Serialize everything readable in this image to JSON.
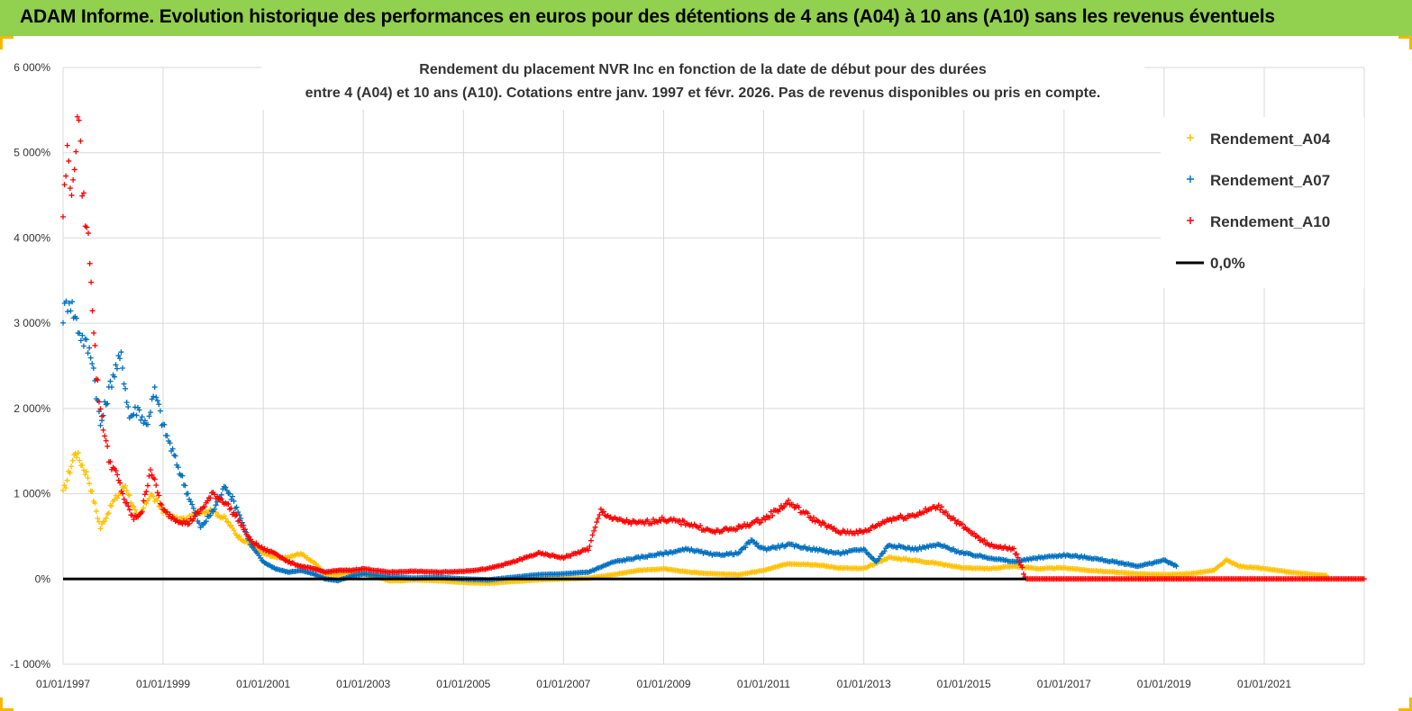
{
  "header": {
    "title": "ADAM Informe. Evolution historique des performances en euros pour des détentions de 4 ans (A04) à 10 ans (A10) sans les revenus éventuels"
  },
  "colors": {
    "header_bg": "#92d050",
    "A04": "#ffc000",
    "A07": "#0070c0",
    "A10": "#ff0000",
    "zero": "#000000"
  },
  "chart_data": {
    "type": "scatter",
    "title_lines": [
      "Rendement du placement NVR Inc en fonction de la date de début pour des durées",
      "entre 4 (A04) et 10 ans (A10). Cotations entre janv. 1997 et févr. 2026. Pas de revenus disponibles ou pris en compte."
    ],
    "xlabel": "",
    "ylabel": "",
    "ylim": [
      -1000,
      6000
    ],
    "y_ticks": [
      "6 000%",
      "5 000%",
      "4 000%",
      "3 000%",
      "2 000%",
      "1 000%",
      "0%",
      "-1 000%"
    ],
    "x_ticks": [
      "01/01/1997",
      "01/01/1999",
      "01/01/2001",
      "01/01/2003",
      "01/01/2005",
      "01/01/2007",
      "01/01/2009",
      "01/01/2011",
      "01/01/2013",
      "01/01/2015",
      "01/01/2017",
      "01/01/2019",
      "01/01/2021"
    ],
    "xlim": [
      "1997-01-01",
      "2023-01-01"
    ],
    "grid": true,
    "legend_position": "top-right",
    "series": [
      {
        "name": "Rendement_A04",
        "color": "#ffc000",
        "marker": "+",
        "points": [
          [
            "1997-01-01",
            1000
          ],
          [
            "1997-04-01",
            1500
          ],
          [
            "1997-07-01",
            1200
          ],
          [
            "1997-10-01",
            600
          ],
          [
            "1998-01-01",
            900
          ],
          [
            "1998-04-01",
            1100
          ],
          [
            "1998-07-01",
            700
          ],
          [
            "1998-10-01",
            1000
          ],
          [
            "1999-01-01",
            800
          ],
          [
            "1999-04-01",
            700
          ],
          [
            "1999-07-01",
            700
          ],
          [
            "1999-10-01",
            800
          ],
          [
            "2000-01-01",
            800
          ],
          [
            "2000-04-01",
            700
          ],
          [
            "2000-07-01",
            500
          ],
          [
            "2000-10-01",
            400
          ],
          [
            "2001-01-01",
            300
          ],
          [
            "2001-04-01",
            250
          ],
          [
            "2001-07-01",
            250
          ],
          [
            "2001-10-01",
            300
          ],
          [
            "2002-01-01",
            200
          ],
          [
            "2002-04-01",
            50
          ],
          [
            "2002-07-01",
            50
          ],
          [
            "2002-10-01",
            80
          ],
          [
            "2003-01-01",
            60
          ],
          [
            "2003-04-01",
            30
          ],
          [
            "2003-07-01",
            -20
          ],
          [
            "2003-10-01",
            -20
          ],
          [
            "2004-01-01",
            -10
          ],
          [
            "2004-07-01",
            -20
          ],
          [
            "2005-01-01",
            -40
          ],
          [
            "2005-07-01",
            -50
          ],
          [
            "2006-01-01",
            -30
          ],
          [
            "2006-07-01",
            -10
          ],
          [
            "2007-01-01",
            0
          ],
          [
            "2007-07-01",
            10
          ],
          [
            "2008-01-01",
            50
          ],
          [
            "2008-07-01",
            100
          ],
          [
            "2009-01-01",
            120
          ],
          [
            "2009-07-01",
            80
          ],
          [
            "2010-01-01",
            60
          ],
          [
            "2010-07-01",
            50
          ],
          [
            "2011-01-01",
            100
          ],
          [
            "2011-07-01",
            180
          ],
          [
            "2012-01-01",
            170
          ],
          [
            "2012-07-01",
            130
          ],
          [
            "2013-01-01",
            120
          ],
          [
            "2013-07-01",
            250
          ],
          [
            "2014-01-01",
            220
          ],
          [
            "2014-07-01",
            180
          ],
          [
            "2015-01-01",
            130
          ],
          [
            "2015-07-01",
            120
          ],
          [
            "2016-01-01",
            150
          ],
          [
            "2016-07-01",
            120
          ],
          [
            "2017-01-01",
            130
          ],
          [
            "2017-07-01",
            100
          ],
          [
            "2018-01-01",
            80
          ],
          [
            "2018-07-01",
            60
          ],
          [
            "2019-01-01",
            50
          ],
          [
            "2019-07-01",
            60
          ],
          [
            "2020-01-01",
            100
          ],
          [
            "2020-04-01",
            220
          ],
          [
            "2020-07-01",
            150
          ],
          [
            "2021-01-01",
            120
          ],
          [
            "2021-07-01",
            80
          ],
          [
            "2022-01-01",
            50
          ],
          [
            "2022-04-01",
            40
          ]
        ]
      },
      {
        "name": "Rendement_A07",
        "color": "#0070c0",
        "marker": "+",
        "points": [
          [
            "1997-01-01",
            3100
          ],
          [
            "1997-02-15",
            3300
          ],
          [
            "1997-05-01",
            2900
          ],
          [
            "1997-08-01",
            2600
          ],
          [
            "1997-10-01",
            1800
          ],
          [
            "1998-01-01",
            2400
          ],
          [
            "1998-03-01",
            2600
          ],
          [
            "1998-05-01",
            1900
          ],
          [
            "1998-07-01",
            2000
          ],
          [
            "1998-09-01",
            1800
          ],
          [
            "1998-11-01",
            2200
          ],
          [
            "1999-01-01",
            1800
          ],
          [
            "1999-04-01",
            1400
          ],
          [
            "1999-07-01",
            1000
          ],
          [
            "1999-10-01",
            600
          ],
          [
            "2000-01-01",
            800
          ],
          [
            "2000-04-01",
            1100
          ],
          [
            "2000-07-01",
            800
          ],
          [
            "2000-10-01",
            400
          ],
          [
            "2001-01-01",
            200
          ],
          [
            "2001-04-01",
            120
          ],
          [
            "2001-07-01",
            80
          ],
          [
            "2001-10-01",
            100
          ],
          [
            "2002-01-01",
            60
          ],
          [
            "2002-04-01",
            0
          ],
          [
            "2002-07-01",
            -20
          ],
          [
            "2002-10-01",
            30
          ],
          [
            "2003-01-01",
            60
          ],
          [
            "2003-07-01",
            30
          ],
          [
            "2004-01-01",
            10
          ],
          [
            "2004-07-01",
            20
          ],
          [
            "2005-01-01",
            0
          ],
          [
            "2005-07-01",
            -10
          ],
          [
            "2006-01-01",
            20
          ],
          [
            "2006-07-01",
            50
          ],
          [
            "2007-01-01",
            60
          ],
          [
            "2007-07-01",
            80
          ],
          [
            "2008-01-01",
            200
          ],
          [
            "2008-07-01",
            250
          ],
          [
            "2009-01-01",
            300
          ],
          [
            "2009-07-01",
            350
          ],
          [
            "2010-01-01",
            280
          ],
          [
            "2010-07-01",
            300
          ],
          [
            "2010-10-01",
            450
          ],
          [
            "2011-01-01",
            350
          ],
          [
            "2011-07-01",
            400
          ],
          [
            "2012-01-01",
            350
          ],
          [
            "2012-07-01",
            300
          ],
          [
            "2013-01-01",
            350
          ],
          [
            "2013-04-01",
            200
          ],
          [
            "2013-07-01",
            400
          ],
          [
            "2014-01-01",
            350
          ],
          [
            "2014-07-01",
            400
          ],
          [
            "2015-01-01",
            300
          ],
          [
            "2015-07-01",
            250
          ],
          [
            "2016-01-01",
            200
          ],
          [
            "2016-07-01",
            250
          ],
          [
            "2017-01-01",
            280
          ],
          [
            "2017-07-01",
            250
          ],
          [
            "2018-01-01",
            200
          ],
          [
            "2018-07-01",
            150
          ],
          [
            "2019-01-01",
            220
          ],
          [
            "2019-04-01",
            150
          ]
        ]
      },
      {
        "name": "Rendement_A10",
        "color": "#ff0000",
        "marker": "+",
        "points": [
          [
            "1997-01-01",
            4300
          ],
          [
            "1997-02-01",
            5000
          ],
          [
            "1997-03-15",
            4500
          ],
          [
            "1997-04-15",
            5500
          ],
          [
            "1997-06-01",
            4400
          ],
          [
            "1997-07-15",
            3800
          ],
          [
            "1997-09-01",
            2400
          ],
          [
            "1997-10-01",
            2000
          ],
          [
            "1997-12-01",
            1400
          ],
          [
            "1998-02-01",
            1200
          ],
          [
            "1998-04-01",
            900
          ],
          [
            "1998-06-01",
            700
          ],
          [
            "1998-08-01",
            800
          ],
          [
            "1998-10-01",
            1300
          ],
          [
            "1999-01-01",
            800
          ],
          [
            "1999-04-01",
            700
          ],
          [
            "1999-07-01",
            650
          ],
          [
            "1999-10-01",
            800
          ],
          [
            "2000-01-01",
            1000
          ],
          [
            "2000-04-01",
            900
          ],
          [
            "2000-07-01",
            700
          ],
          [
            "2000-10-01",
            450
          ],
          [
            "2001-01-01",
            350
          ],
          [
            "2001-04-01",
            300
          ],
          [
            "2001-07-01",
            200
          ],
          [
            "2001-10-01",
            150
          ],
          [
            "2002-01-01",
            120
          ],
          [
            "2002-04-01",
            80
          ],
          [
            "2002-07-01",
            100
          ],
          [
            "2002-10-01",
            100
          ],
          [
            "2003-01-01",
            120
          ],
          [
            "2003-07-01",
            80
          ],
          [
            "2004-01-01",
            90
          ],
          [
            "2004-07-01",
            80
          ],
          [
            "2005-01-01",
            90
          ],
          [
            "2005-07-01",
            120
          ],
          [
            "2006-01-01",
            200
          ],
          [
            "2006-07-01",
            300
          ],
          [
            "2007-01-01",
            250
          ],
          [
            "2007-07-01",
            350
          ],
          [
            "2007-10-01",
            800
          ],
          [
            "2008-01-01",
            700
          ],
          [
            "2008-07-01",
            650
          ],
          [
            "2009-01-01",
            700
          ],
          [
            "2009-07-01",
            650
          ],
          [
            "2010-01-01",
            550
          ],
          [
            "2010-07-01",
            600
          ],
          [
            "2011-01-01",
            700
          ],
          [
            "2011-07-01",
            900
          ],
          [
            "2012-01-01",
            700
          ],
          [
            "2012-07-01",
            550
          ],
          [
            "2013-01-01",
            550
          ],
          [
            "2013-07-01",
            700
          ],
          [
            "2014-01-01",
            750
          ],
          [
            "2014-07-01",
            850
          ],
          [
            "2015-01-01",
            600
          ],
          [
            "2015-07-01",
            400
          ],
          [
            "2016-01-01",
            350
          ],
          [
            "2016-04-01",
            0
          ],
          [
            "2018-01-01",
            0
          ],
          [
            "2020-01-01",
            0
          ],
          [
            "2022-01-01",
            0
          ],
          [
            "2022-12-31",
            0
          ]
        ]
      },
      {
        "name": "0,0%",
        "color": "#000000",
        "type": "line",
        "points": [
          [
            "1997-01-01",
            0
          ],
          [
            "2016-04-01",
            0
          ]
        ]
      }
    ]
  }
}
